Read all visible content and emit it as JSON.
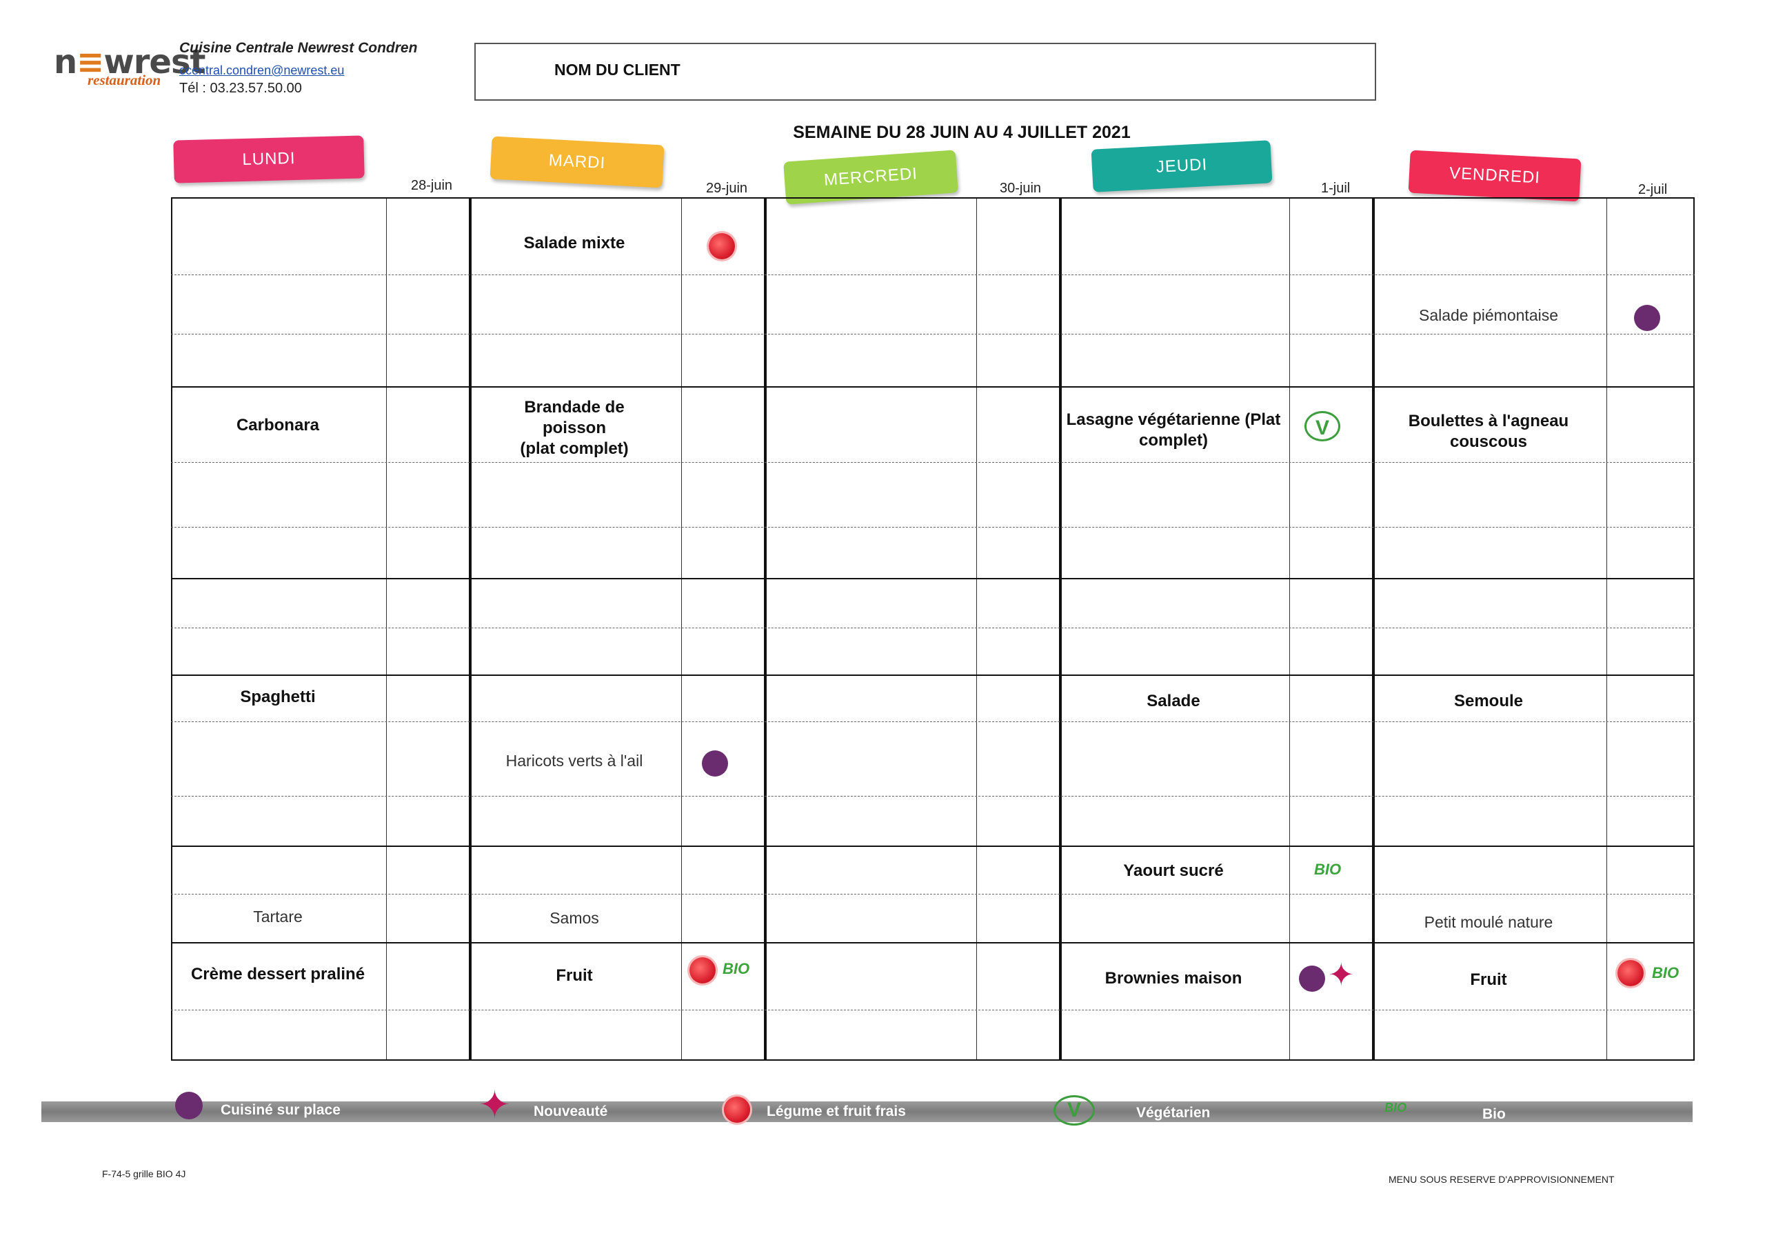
{
  "header": {
    "logo_main": "newrest",
    "logo_sub": "restauration",
    "org_name": "Cuisine Centrale Newrest Condren",
    "org_email": "ccentral.condren@newrest.eu",
    "org_phone": "Tél : 03.23.57.50.00",
    "client_label": "NOM DU CLIENT",
    "week_title": "SEMAINE DU 28 JUIN AU 4 JUILLET 2021"
  },
  "days": [
    {
      "name": "LUNDI",
      "date": "28-juin",
      "color": "#e8336f"
    },
    {
      "name": "MARDI",
      "date": "29-juin",
      "color": "#f7b733"
    },
    {
      "name": "MERCREDI",
      "date": "30-juin",
      "color": "#9fd44a"
    },
    {
      "name": "JEUDI",
      "date": "1-juil",
      "color": "#1aa89a"
    },
    {
      "name": "VENDREDI",
      "date": "2-juil",
      "color": "#ef2d55"
    }
  ],
  "menu": {
    "lundi": {
      "plat": "Carbonara",
      "accompagnement": "Spaghetti",
      "fromage": "Tartare",
      "dessert": "Crème dessert praliné"
    },
    "mardi": {
      "entree": "Salade mixte",
      "plat_line1": "Brandade de",
      "plat_line2": "poisson",
      "plat_line3": "(plat complet)",
      "accompagnement": "Haricots  verts à l'ail",
      "fromage": "Samos",
      "dessert": "Fruit"
    },
    "jeudi": {
      "plat_line1": "Lasagne végétarienne (Plat",
      "plat_line2": "complet)",
      "accompagnement": "Salade",
      "laitage": "Yaourt sucré",
      "dessert": "Brownies maison"
    },
    "vendredi": {
      "entree": "Salade piémontaise",
      "plat_line1": "Boulettes à l'agneau",
      "plat_line2": "couscous",
      "accompagnement": "Semoule",
      "fromage": "Petit moulé nature",
      "dessert": "Fruit"
    }
  },
  "icon_text": {
    "bio": "BIO",
    "veg": "V"
  },
  "legend": [
    {
      "icon": "chef-hat-icon",
      "label": "Cuisiné sur place"
    },
    {
      "icon": "star-icon",
      "label": "Nouveauté"
    },
    {
      "icon": "tomato-icon",
      "label": "Légume et fruit frais"
    },
    {
      "icon": "vegetarian-icon",
      "label": "Végétarien"
    },
    {
      "icon": "bio-icon",
      "label": "Bio"
    }
  ],
  "footer": {
    "form_ref": "F-74-5 grille BIO 4J",
    "disclaimer": "MENU SOUS RESERVE D'APPROVISIONNEMENT"
  },
  "colors": {
    "tomato": "#d81b2a",
    "chef": "#6b2c6f",
    "bio": "#3aa53a",
    "star": "#c2185b"
  }
}
